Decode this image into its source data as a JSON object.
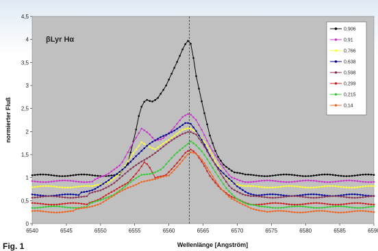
{
  "chart_data": {
    "type": "line",
    "title": "βLyr  Hα",
    "xlabel": "Wellenlänge [Angström]",
    "ylabel": "normierter Fluß",
    "xlim": [
      6540,
      6590
    ],
    "ylim": [
      0,
      4.5
    ],
    "x_ticks": [
      "6540",
      "6545",
      "6550",
      "6555",
      "6560",
      "6565",
      "6570",
      "6575",
      "6580",
      "6585",
      "6590"
    ],
    "y_ticks": [
      "0",
      "0,5",
      "1",
      "1,5",
      "2",
      "2,5",
      "3",
      "3,5",
      "4",
      "4,5"
    ],
    "grid": false,
    "legend_position": "top-right",
    "vertical_marker_x": 6563,
    "background": "#c0c0c0",
    "series": [
      {
        "name": "0,906",
        "color": "#000000",
        "base": 1.05,
        "points": [
          [
            6553,
            1.1
          ],
          [
            6554,
            1.3
          ],
          [
            6555,
            1.9
          ],
          [
            6555.8,
            2.5
          ],
          [
            6556.6,
            2.72
          ],
          [
            6557.5,
            2.65
          ],
          [
            6558.3,
            2.7
          ],
          [
            6559.5,
            2.95
          ],
          [
            6561,
            3.45
          ],
          [
            6562,
            3.8
          ],
          [
            6562.7,
            4.0
          ],
          [
            6563.3,
            3.9
          ],
          [
            6564,
            3.2
          ],
          [
            6565,
            2.5
          ],
          [
            6566,
            1.9
          ],
          [
            6567,
            1.5
          ],
          [
            6568,
            1.3
          ],
          [
            6569.5,
            1.12
          ],
          [
            6571,
            1.06
          ]
        ]
      },
      {
        "name": "0,91",
        "color": "#cc33cc",
        "base": 0.92,
        "points": [
          [
            6549,
            0.95
          ],
          [
            6551,
            1.05
          ],
          [
            6553,
            1.3
          ],
          [
            6554.5,
            1.7
          ],
          [
            6556,
            2.05
          ],
          [
            6557,
            1.95
          ],
          [
            6558,
            1.8
          ],
          [
            6559,
            1.85
          ],
          [
            6560.5,
            2.05
          ],
          [
            6562,
            2.3
          ],
          [
            6563,
            2.38
          ],
          [
            6564,
            2.25
          ],
          [
            6565,
            2.0
          ],
          [
            6566,
            1.7
          ],
          [
            6567.5,
            1.3
          ],
          [
            6569,
            1.0
          ],
          [
            6571,
            0.92
          ]
        ]
      },
      {
        "name": "0,766",
        "color": "#ffff33",
        "base": 0.8,
        "points": [
          [
            6549,
            0.82
          ],
          [
            6551,
            0.9
          ],
          [
            6553,
            1.1
          ],
          [
            6554.5,
            1.45
          ],
          [
            6556,
            1.78
          ],
          [
            6557,
            1.7
          ],
          [
            6558,
            1.62
          ],
          [
            6560,
            1.8
          ],
          [
            6562,
            2.05
          ],
          [
            6563,
            2.1
          ],
          [
            6564,
            2.0
          ],
          [
            6565.5,
            1.7
          ],
          [
            6567,
            1.3
          ],
          [
            6568.5,
            1.0
          ],
          [
            6570,
            0.85
          ],
          [
            6571,
            0.8
          ]
        ]
      },
      {
        "name": "0,638",
        "color": "#000099",
        "base": 0.62,
        "points": [
          [
            6547,
            0.68
          ],
          [
            6549,
            0.75
          ],
          [
            6551,
            0.9
          ],
          [
            6553,
            1.15
          ],
          [
            6555,
            1.45
          ],
          [
            6557,
            1.7
          ],
          [
            6559,
            1.9
          ],
          [
            6561,
            2.05
          ],
          [
            6562.5,
            2.18
          ],
          [
            6563.2,
            2.15
          ],
          [
            6564,
            2.0
          ],
          [
            6565,
            1.78
          ],
          [
            6566,
            1.5
          ],
          [
            6567,
            1.25
          ],
          [
            6568.5,
            1.0
          ],
          [
            6570,
            0.8
          ],
          [
            6571.5,
            0.68
          ],
          [
            6573,
            0.62
          ]
        ]
      },
      {
        "name": "0,598",
        "color": "#883355",
        "base": 0.58,
        "points": [
          [
            6548,
            0.62
          ],
          [
            6550,
            0.72
          ],
          [
            6552,
            0.9
          ],
          [
            6554,
            1.12
          ],
          [
            6556,
            1.35
          ],
          [
            6558,
            1.55
          ],
          [
            6560,
            1.75
          ],
          [
            6562,
            1.95
          ],
          [
            6563,
            2.02
          ],
          [
            6564,
            1.95
          ],
          [
            6565,
            1.72
          ],
          [
            6566,
            1.45
          ],
          [
            6567.5,
            1.1
          ],
          [
            6569,
            0.8
          ],
          [
            6571,
            0.62
          ],
          [
            6572,
            0.58
          ]
        ]
      },
      {
        "name": "0,299",
        "color": "#cc2222",
        "base": 0.43,
        "points": [
          [
            6548,
            0.45
          ],
          [
            6550,
            0.55
          ],
          [
            6552,
            0.7
          ],
          [
            6554,
            0.9
          ],
          [
            6555.5,
            1.15
          ],
          [
            6556.5,
            1.35
          ],
          [
            6557.2,
            1.2
          ],
          [
            6558,
            0.98
          ],
          [
            6559.5,
            1.05
          ],
          [
            6561,
            1.3
          ],
          [
            6562.5,
            1.55
          ],
          [
            6563.3,
            1.6
          ],
          [
            6564,
            1.5
          ],
          [
            6565,
            1.3
          ],
          [
            6566,
            1.05
          ],
          [
            6567.5,
            0.78
          ],
          [
            6569,
            0.58
          ],
          [
            6571,
            0.46
          ],
          [
            6572,
            0.43
          ]
        ]
      },
      {
        "name": "0,215",
        "color": "#33cc33",
        "base": 0.36,
        "points": [
          [
            6548,
            0.4
          ],
          [
            6550,
            0.5
          ],
          [
            6552,
            0.65
          ],
          [
            6554,
            0.85
          ],
          [
            6556,
            1.05
          ],
          [
            6557.5,
            1.1
          ],
          [
            6559,
            1.2
          ],
          [
            6561,
            1.5
          ],
          [
            6562.5,
            1.7
          ],
          [
            6563.2,
            1.8
          ],
          [
            6564,
            1.72
          ],
          [
            6565,
            1.55
          ],
          [
            6566,
            1.3
          ],
          [
            6567,
            1.05
          ],
          [
            6568.5,
            0.75
          ],
          [
            6570,
            0.55
          ],
          [
            6571.5,
            0.42
          ],
          [
            6573,
            0.37
          ]
        ]
      },
      {
        "name": "0,14",
        "color": "#ee6622",
        "base": 0.26,
        "points": [
          [
            6546,
            0.28
          ],
          [
            6548,
            0.35
          ],
          [
            6550,
            0.45
          ],
          [
            6552,
            0.6
          ],
          [
            6554,
            0.78
          ],
          [
            6556,
            0.92
          ],
          [
            6558,
            0.95
          ],
          [
            6560,
            1.05
          ],
          [
            6561.5,
            1.3
          ],
          [
            6562.7,
            1.5
          ],
          [
            6563.3,
            1.55
          ],
          [
            6564.2,
            1.48
          ],
          [
            6565.2,
            1.3
          ],
          [
            6566.2,
            1.08
          ],
          [
            6567.5,
            0.8
          ],
          [
            6569,
            0.55
          ],
          [
            6570.5,
            0.42
          ],
          [
            6572,
            0.34
          ],
          [
            6574,
            0.28
          ]
        ]
      }
    ]
  },
  "caption": "Fig. 1"
}
